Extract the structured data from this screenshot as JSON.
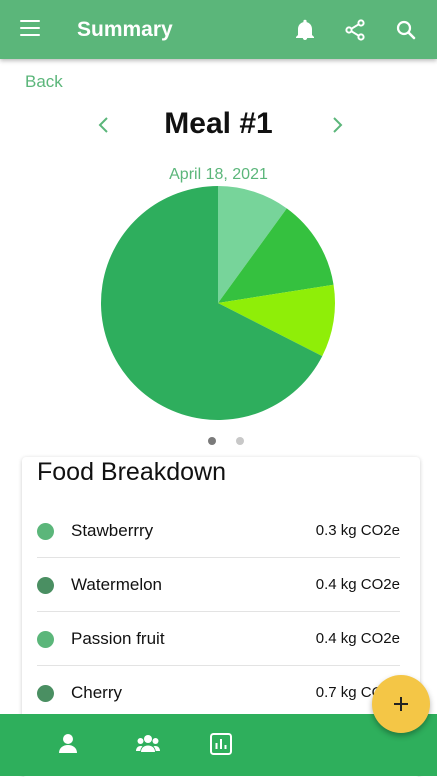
{
  "header": {
    "title": "Summary",
    "icons": [
      "menu-icon",
      "bell-icon",
      "share-icon",
      "search-icon"
    ]
  },
  "back_label": "Back",
  "meal": {
    "title": "Meal #1",
    "date": "April 18, 2021"
  },
  "chart_data": {
    "type": "pie",
    "slices": [
      {
        "value": 0.1,
        "color": "#77d49a"
      },
      {
        "value": 0.125,
        "color": "#35c13f"
      },
      {
        "value": 0.1,
        "color": "#8fee08"
      },
      {
        "value": 0.675,
        "color": "#2eae5d"
      }
    ]
  },
  "pager": {
    "count": 2,
    "active": 0
  },
  "breakdown": {
    "title": "Food Breakdown",
    "items": [
      {
        "name": "Stawberrry",
        "amount": "0.3 kg CO2e",
        "color": "#5bb67a"
      },
      {
        "name": "Watermelon",
        "amount": "0.4 kg CO2e",
        "color": "#4a8f62"
      },
      {
        "name": "Passion fruit",
        "amount": "0.4 kg CO2e",
        "color": "#5bb67a"
      },
      {
        "name": "Cherry",
        "amount": "0.7 kg CO2e",
        "color": "#4a8f62"
      }
    ]
  },
  "nav": {
    "icons": [
      "person-icon",
      "group-icon",
      "chart-icon"
    ]
  },
  "fab": {
    "icon": "plus-icon"
  },
  "colors": {
    "appbar": "#5bb67a",
    "bottombar": "#2eaf5c",
    "fab": "#f4c646"
  }
}
